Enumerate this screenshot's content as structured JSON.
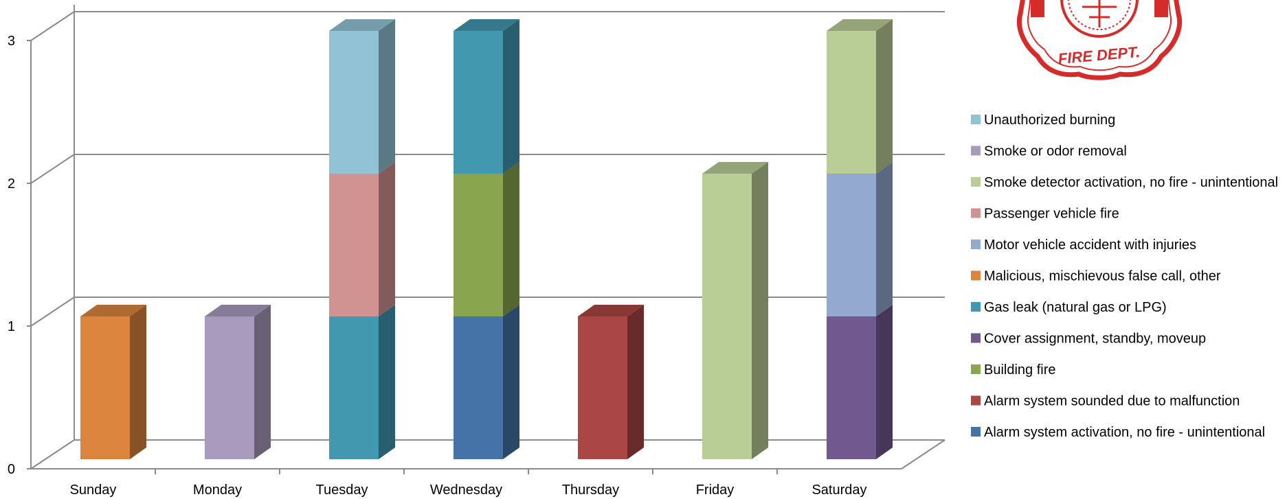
{
  "chart_data": {
    "type": "bar",
    "stacked": true,
    "three_d": true,
    "title": "",
    "xlabel": "",
    "ylabel": "",
    "ylim": [
      0,
      3
    ],
    "y_ticks": [
      "0",
      "1",
      "2",
      "3"
    ],
    "grid": true,
    "legend_position": "right",
    "categories": [
      "Sunday",
      "Monday",
      "Tuesday",
      "Wednesday",
      "Thursday",
      "Friday",
      "Saturday"
    ],
    "series": [
      {
        "name": "Alarm system activation, no fire - unintentional",
        "color": "#4572A7",
        "values": [
          0,
          0,
          0,
          1,
          0,
          0,
          0
        ]
      },
      {
        "name": "Alarm system sounded due to malfunction",
        "color": "#AA4643",
        "values": [
          0,
          0,
          0,
          0,
          1,
          0,
          0
        ]
      },
      {
        "name": "Building fire",
        "color": "#89A54E",
        "values": [
          0,
          0,
          0,
          1,
          0,
          0,
          0
        ]
      },
      {
        "name": "Cover assignment, standby, moveup",
        "color": "#71588F",
        "values": [
          0,
          0,
          0,
          0,
          0,
          0,
          1
        ]
      },
      {
        "name": "Gas leak (natural gas or LPG)",
        "color": "#4198AF",
        "values": [
          0,
          0,
          1,
          1,
          0,
          0,
          0
        ]
      },
      {
        "name": "Malicious, mischievous false call, other",
        "color": "#DB843D",
        "values": [
          1,
          0,
          0,
          0,
          0,
          0,
          0
        ]
      },
      {
        "name": "Motor vehicle accident with injuries",
        "color": "#93A9CF",
        "values": [
          0,
          0,
          0,
          0,
          0,
          0,
          1
        ]
      },
      {
        "name": "Passenger vehicle fire",
        "color": "#D19392",
        "values": [
          0,
          0,
          1,
          0,
          0,
          0,
          0
        ]
      },
      {
        "name": "Smoke detector activation, no fire - unintentional",
        "color": "#B9CD96",
        "values": [
          0,
          0,
          0,
          0,
          0,
          2,
          1
        ]
      },
      {
        "name": "Smoke or odor removal",
        "color": "#A99BBD",
        "values": [
          0,
          1,
          0,
          0,
          0,
          0,
          0
        ]
      },
      {
        "name": "Unauthorized burning",
        "color": "#92C3D5",
        "values": [
          0,
          0,
          1,
          0,
          0,
          0,
          0
        ]
      }
    ]
  },
  "logo": {
    "text": "FIRE DEPT.",
    "icon": "fire-department-maltese-cross-logo"
  }
}
